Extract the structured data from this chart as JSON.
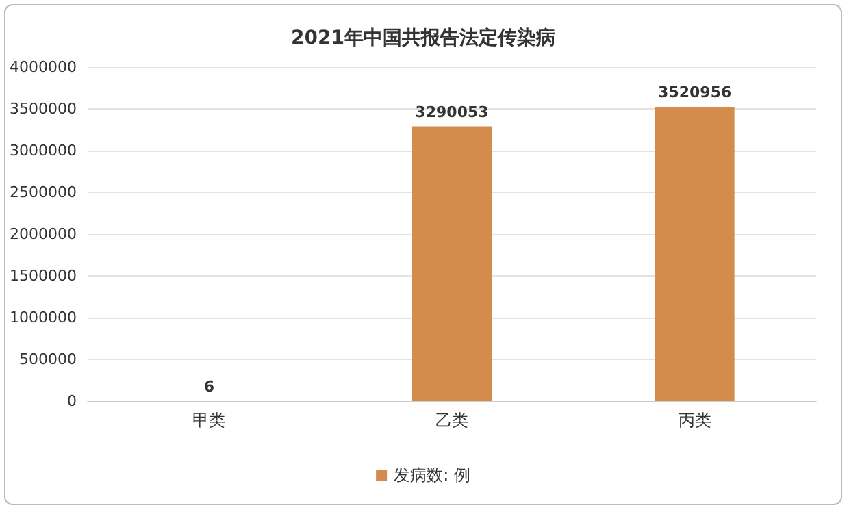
{
  "chart_data": {
    "type": "bar",
    "title": "2021年中国共报告法定传染病",
    "categories": [
      "甲类",
      "乙类",
      "丙类"
    ],
    "series": [
      {
        "name": "发病数: 例",
        "color": "#d38c4c",
        "values": [
          6,
          3290053,
          3520956
        ]
      }
    ],
    "ylim": [
      0,
      4000000
    ],
    "yticks": [
      0,
      500000,
      1000000,
      1500000,
      2000000,
      2500000,
      3000000,
      3500000,
      4000000
    ],
    "grid": "y",
    "legend": "bottom",
    "data_labels": true
  }
}
